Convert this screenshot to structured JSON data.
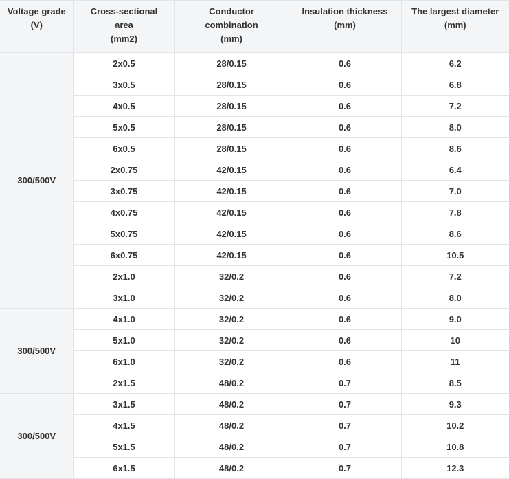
{
  "table": {
    "header": [
      [
        "Voltage grade",
        "(V)"
      ],
      [
        "Cross-sectional",
        "area",
        "(mm2)"
      ],
      [
        "Conductor",
        "combination",
        "(mm)"
      ],
      [
        "Insulation thickness",
        "(mm)"
      ],
      [
        "The largest diameter",
        "(mm)"
      ]
    ],
    "groups": [
      {
        "voltage": "300/500V",
        "rows": [
          [
            "2x0.5",
            "28/0.15",
            "0.6",
            "6.2"
          ],
          [
            "3x0.5",
            "28/0.15",
            "0.6",
            "6.8"
          ],
          [
            "4x0.5",
            "28/0.15",
            "0.6",
            "7.2"
          ],
          [
            "5x0.5",
            "28/0.15",
            "0.6",
            "8.0"
          ],
          [
            "6x0.5",
            "28/0.15",
            "0.6",
            "8.6"
          ],
          [
            "2x0.75",
            "42/0.15",
            "0.6",
            "6.4"
          ],
          [
            "3x0.75",
            "42/0.15",
            "0.6",
            "7.0"
          ],
          [
            "4x0.75",
            "42/0.15",
            "0.6",
            "7.8"
          ],
          [
            "5x0.75",
            "42/0.15",
            "0.6",
            "8.6"
          ],
          [
            "6x0.75",
            "42/0.15",
            "0.6",
            "10.5"
          ],
          [
            "2x1.0",
            "32/0.2",
            "0.6",
            "7.2"
          ],
          [
            "3x1.0",
            "32/0.2",
            "0.6",
            "8.0"
          ]
        ]
      },
      {
        "voltage": "300/500V",
        "rows": [
          [
            "4x1.0",
            "32/0.2",
            "0.6",
            "9.0"
          ],
          [
            "5x1.0",
            "32/0.2",
            "0.6",
            "10"
          ],
          [
            "6x1.0",
            "32/0.2",
            "0.6",
            "11"
          ],
          [
            "2x1.5",
            "48/0.2",
            "0.7",
            "8.5"
          ]
        ]
      },
      {
        "voltage": "300/500V",
        "rows": [
          [
            "3x1.5",
            "48/0.2",
            "0.7",
            "9.3"
          ],
          [
            "4x1.5",
            "48/0.2",
            "0.7",
            "10.2"
          ],
          [
            "5x1.5",
            "48/0.2",
            "0.7",
            "10.8"
          ],
          [
            "6x1.5",
            "48/0.2",
            "0.7",
            "12.3"
          ]
        ]
      }
    ]
  }
}
